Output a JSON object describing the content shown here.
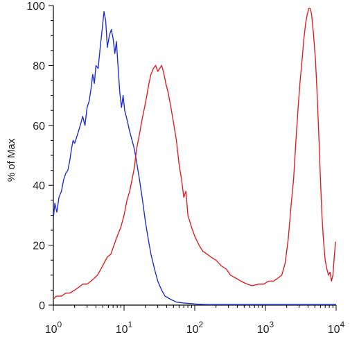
{
  "chart_data": {
    "type": "line",
    "ylabel": "% of Max",
    "xlabel": "",
    "x_scale": "log",
    "xlim": [
      1,
      10000
    ],
    "ylim": [
      0,
      100
    ],
    "x_ticks": [
      {
        "value": 1,
        "base": "10",
        "exp": "0"
      },
      {
        "value": 10,
        "base": "10",
        "exp": "1"
      },
      {
        "value": 100,
        "base": "10",
        "exp": "2"
      },
      {
        "value": 1000,
        "base": "10",
        "exp": "3"
      },
      {
        "value": 10000,
        "base": "10",
        "exp": "4"
      }
    ],
    "y_ticks": [
      {
        "value": 0,
        "label": "0"
      },
      {
        "value": 20,
        "label": "20"
      },
      {
        "value": 40,
        "label": "40"
      },
      {
        "value": 60,
        "label": "60"
      },
      {
        "value": 80,
        "label": "80"
      },
      {
        "value": 100,
        "label": "100"
      }
    ],
    "series": [
      {
        "color": "#1f2fd6",
        "points": [
          [
            1.0,
            29
          ],
          [
            1.05,
            34
          ],
          [
            1.12,
            31
          ],
          [
            1.2,
            36
          ],
          [
            1.3,
            38
          ],
          [
            1.4,
            42
          ],
          [
            1.5,
            44
          ],
          [
            1.6,
            45
          ],
          [
            1.7,
            48
          ],
          [
            1.8,
            52
          ],
          [
            1.9,
            55
          ],
          [
            2.0,
            54
          ],
          [
            2.2,
            57
          ],
          [
            2.4,
            60
          ],
          [
            2.6,
            63
          ],
          [
            2.8,
            60
          ],
          [
            3.0,
            66
          ],
          [
            3.2,
            68
          ],
          [
            3.4,
            72
          ],
          [
            3.6,
            77
          ],
          [
            3.8,
            74
          ],
          [
            4.0,
            80
          ],
          [
            4.3,
            79
          ],
          [
            4.6,
            86
          ],
          [
            4.9,
            92
          ],
          [
            5.2,
            98
          ],
          [
            5.5,
            95
          ],
          [
            5.8,
            86
          ],
          [
            6.2,
            90
          ],
          [
            6.6,
            92
          ],
          [
            7.0,
            89
          ],
          [
            7.4,
            84
          ],
          [
            7.8,
            88
          ],
          [
            8.2,
            80
          ],
          [
            8.7,
            71
          ],
          [
            9.2,
            66
          ],
          [
            9.7,
            70
          ],
          [
            10.2,
            65
          ],
          [
            11.0,
            62
          ],
          [
            12.0,
            58
          ],
          [
            13.0,
            55
          ],
          [
            14.0,
            52
          ],
          [
            15.0,
            48
          ],
          [
            16.5,
            42
          ],
          [
            18.0,
            36
          ],
          [
            20.0,
            28
          ],
          [
            22.0,
            22
          ],
          [
            24.0,
            17
          ],
          [
            27.0,
            12
          ],
          [
            30.0,
            8
          ],
          [
            34.0,
            5
          ],
          [
            38.0,
            3
          ],
          [
            45.0,
            2
          ],
          [
            55.0,
            1
          ],
          [
            70.0,
            0.7
          ],
          [
            90.0,
            0.5
          ],
          [
            110.0,
            0.3
          ],
          [
            150.0,
            0.2
          ],
          [
            300.0,
            0.2
          ],
          [
            1000.0,
            0.2
          ],
          [
            3000.0,
            0.2
          ],
          [
            10000.0,
            0.2
          ]
        ]
      },
      {
        "color": "#e02020",
        "points": [
          [
            1.0,
            2
          ],
          [
            1.1,
            3
          ],
          [
            1.3,
            3
          ],
          [
            1.5,
            4
          ],
          [
            1.7,
            4
          ],
          [
            2.0,
            5
          ],
          [
            2.3,
            6
          ],
          [
            2.6,
            7
          ],
          [
            3.0,
            7
          ],
          [
            3.4,
            8
          ],
          [
            3.8,
            9
          ],
          [
            4.2,
            10
          ],
          [
            4.7,
            12
          ],
          [
            5.2,
            14
          ],
          [
            5.8,
            16
          ],
          [
            6.5,
            17
          ],
          [
            7.2,
            20
          ],
          [
            8.0,
            23
          ],
          [
            9.0,
            26
          ],
          [
            10.0,
            30
          ],
          [
            11.0,
            35
          ],
          [
            12.0,
            38
          ],
          [
            13.0,
            42
          ],
          [
            14.0,
            46
          ],
          [
            15.0,
            52
          ],
          [
            16.5,
            57
          ],
          [
            18.0,
            62
          ],
          [
            19.5,
            66
          ],
          [
            21.0,
            70
          ],
          [
            22.5,
            74
          ],
          [
            24.0,
            77
          ],
          [
            26.0,
            79
          ],
          [
            28.0,
            80
          ],
          [
            30.0,
            78
          ],
          [
            32.0,
            79
          ],
          [
            34.0,
            80
          ],
          [
            36.0,
            78
          ],
          [
            39.0,
            74
          ],
          [
            42.0,
            71
          ],
          [
            46.0,
            66
          ],
          [
            50.0,
            61
          ],
          [
            55.0,
            55
          ],
          [
            60.0,
            47
          ],
          [
            65.0,
            42
          ],
          [
            70.0,
            36
          ],
          [
            75.0,
            38
          ],
          [
            80.0,
            30
          ],
          [
            90.0,
            26
          ],
          [
            100.0,
            23
          ],
          [
            115.0,
            20
          ],
          [
            130.0,
            18
          ],
          [
            150.0,
            17
          ],
          [
            170.0,
            16
          ],
          [
            200.0,
            15
          ],
          [
            240.0,
            13
          ],
          [
            280.0,
            12
          ],
          [
            320.0,
            10
          ],
          [
            380.0,
            9
          ],
          [
            450.0,
            8
          ],
          [
            550.0,
            7
          ],
          [
            650.0,
            6.5
          ],
          [
            800.0,
            7
          ],
          [
            950.0,
            7
          ],
          [
            1100.0,
            8
          ],
          [
            1300.0,
            8
          ],
          [
            1500.0,
            9
          ],
          [
            1700.0,
            10
          ],
          [
            1900.0,
            14
          ],
          [
            2100.0,
            22
          ],
          [
            2300.0,
            33
          ],
          [
            2500.0,
            42
          ],
          [
            2700.0,
            55
          ],
          [
            2900.0,
            66
          ],
          [
            3100.0,
            75
          ],
          [
            3300.0,
            82
          ],
          [
            3500.0,
            89
          ],
          [
            3700.0,
            94
          ],
          [
            3900.0,
            97
          ],
          [
            4100.0,
            99
          ],
          [
            4300.0,
            99
          ],
          [
            4500.0,
            97
          ],
          [
            4800.0,
            90
          ],
          [
            5100.0,
            82
          ],
          [
            5400.0,
            70
          ],
          [
            5700.0,
            56
          ],
          [
            6000.0,
            42
          ],
          [
            6300.0,
            30
          ],
          [
            6600.0,
            22
          ],
          [
            7000.0,
            15
          ],
          [
            7400.0,
            12
          ],
          [
            7800.0,
            10
          ],
          [
            8200.0,
            11
          ],
          [
            8600.0,
            8
          ],
          [
            9000.0,
            10
          ],
          [
            9400.0,
            16
          ],
          [
            9800.0,
            21
          ],
          [
            10000.0,
            21
          ]
        ]
      }
    ]
  }
}
